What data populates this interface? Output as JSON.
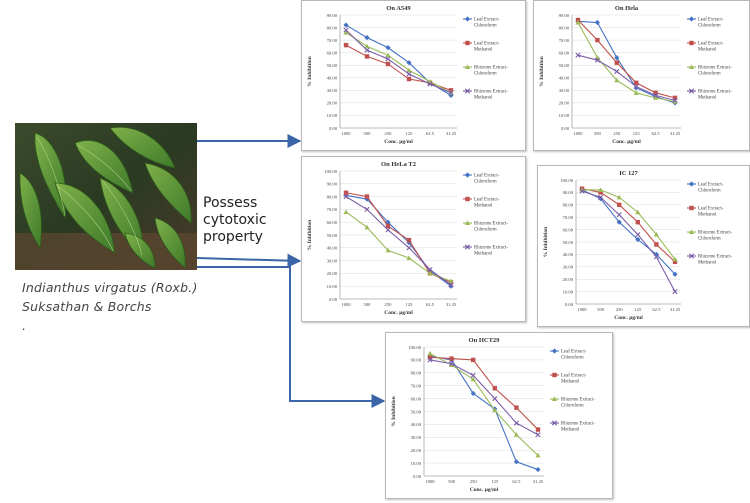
{
  "plant": {
    "caption_line1": "Indianthus virgatus (Roxb.)",
    "caption_line2": "Suksathan & Borchs",
    "caption_line3": "."
  },
  "property_label": {
    "line1": "Possess",
    "line2": "cytotoxic",
    "line3": "property"
  },
  "colors": {
    "leaf_chloroform": "#4472c4",
    "leaf_methanol": "#c0504d",
    "rhizome_chloroform": "#9bbb59",
    "rhizome_methanol": "#7b5ea7",
    "arrow": "#3a66a8"
  },
  "chart_data": [
    {
      "type": "line",
      "title": "On A549",
      "ylabel": "% Inhibition",
      "xlabel": "Conc. µg/ml",
      "categories": [
        "1000",
        "500",
        "250",
        "125",
        "62.5",
        "31.25"
      ],
      "yticks": [
        "0.00",
        "10.00",
        "20.00",
        "30.00",
        "40.00",
        "50.00",
        "60.00",
        "70.00",
        "80.00",
        "90.00"
      ],
      "ylim": [
        0,
        90
      ],
      "series": [
        {
          "name": "Leaf Extract-Chloroform",
          "values": [
            82,
            72,
            64,
            52,
            36,
            26
          ]
        },
        {
          "name": "Leaf Extract-Methanol",
          "values": [
            66,
            57,
            51,
            39,
            36,
            30
          ]
        },
        {
          "name": "Rhizome Extract-Chloroform",
          "values": [
            76,
            65,
            58,
            46,
            37,
            28
          ]
        },
        {
          "name": "Rhizome Extract-Methanol",
          "values": [
            78,
            62,
            55,
            43,
            35,
            28
          ]
        }
      ]
    },
    {
      "type": "line",
      "title": "On Hela",
      "ylabel": "% Inhibition",
      "xlabel": "Conc. µg/ml",
      "categories": [
        "1000",
        "500",
        "250",
        "125",
        "62.5",
        "31.25"
      ],
      "yticks": [
        "0.00",
        "10.00",
        "20.00",
        "30.00",
        "40.00",
        "50.00",
        "60.00",
        "70.00",
        "80.00",
        "90.00"
      ],
      "ylim": [
        0,
        90
      ],
      "series": [
        {
          "name": "Leaf Extract-Chloroform",
          "values": [
            85,
            84,
            56,
            32,
            25,
            20
          ]
        },
        {
          "name": "Leaf Extract-Methanol",
          "values": [
            86,
            70,
            52,
            36,
            28,
            24
          ]
        },
        {
          "name": "Rhizome Extract-Chloroform",
          "values": [
            84,
            56,
            38,
            28,
            24,
            21
          ]
        },
        {
          "name": "Rhizome Extract-Methanol",
          "values": [
            58,
            54,
            45,
            33,
            26,
            22
          ]
        }
      ]
    },
    {
      "type": "line",
      "title": "On HeLa T2",
      "ylabel": "% Inhibition",
      "xlabel": "Conc. µg/ml",
      "categories": [
        "1000",
        "500",
        "250",
        "125",
        "62.5",
        "31.25"
      ],
      "yticks": [
        "0.00",
        "10.00",
        "20.00",
        "30.00",
        "40.00",
        "50.00",
        "60.00",
        "70.00",
        "80.00",
        "90.00",
        "100.00"
      ],
      "ylim": [
        0,
        100
      ],
      "series": [
        {
          "name": "Leaf Extract-Chloroform",
          "values": [
            81,
            78,
            60,
            44,
            22,
            10
          ]
        },
        {
          "name": "Leaf Extract-Methanol",
          "values": [
            83,
            80,
            57,
            46,
            20,
            13
          ]
        },
        {
          "name": "Rhizome Extract-Chloroform",
          "values": [
            68,
            56,
            38,
            32,
            20,
            14
          ]
        },
        {
          "name": "Rhizome Extract-Methanol",
          "values": [
            80,
            70,
            54,
            40,
            23,
            11
          ]
        }
      ]
    },
    {
      "type": "line",
      "title": "IC 127",
      "ylabel": "% Inhibition",
      "xlabel": "Conc. µg/ml",
      "categories": [
        "1000",
        "500",
        "250",
        "125",
        "62.5",
        "31.25"
      ],
      "yticks": [
        "0.00",
        "10.00",
        "20.00",
        "30.00",
        "40.00",
        "50.00",
        "60.00",
        "70.00",
        "80.00",
        "90.00",
        "100.00"
      ],
      "ylim": [
        0,
        100
      ],
      "series": [
        {
          "name": "Leaf Extract-Chloroform",
          "values": [
            92,
            85,
            66,
            52,
            40,
            24
          ]
        },
        {
          "name": "Leaf Extract-Methanol",
          "values": [
            93,
            90,
            80,
            66,
            48,
            34
          ]
        },
        {
          "name": "Rhizome Extract-Chloroform",
          "values": [
            92,
            92,
            86,
            74,
            56,
            36
          ]
        },
        {
          "name": "Rhizome Extract-Methanol",
          "values": [
            91,
            86,
            72,
            56,
            38,
            10
          ]
        }
      ]
    },
    {
      "type": "line",
      "title": "On HCT29",
      "ylabel": "% Inhibition",
      "xlabel": "Conc. µg/ml",
      "categories": [
        "1000",
        "500",
        "250",
        "125",
        "62.5",
        "31.25"
      ],
      "yticks": [
        "0.00",
        "10.00",
        "20.00",
        "30.00",
        "40.00",
        "50.00",
        "60.00",
        "70.00",
        "80.00",
        "90.00",
        "100.00"
      ],
      "ylim": [
        0,
        100
      ],
      "series": [
        {
          "name": "Leaf Extract-Chloroform",
          "values": [
            93,
            90,
            64,
            52,
            11,
            5
          ]
        },
        {
          "name": "Leaf Extract-Methanol",
          "values": [
            92,
            91,
            90,
            68,
            53,
            36
          ]
        },
        {
          "name": "Rhizome Extract-Chloroform",
          "values": [
            95,
            86,
            75,
            51,
            32,
            16
          ]
        },
        {
          "name": "Rhizome Extract-Methanol",
          "values": [
            90,
            87,
            78,
            60,
            41,
            32
          ]
        }
      ]
    }
  ]
}
